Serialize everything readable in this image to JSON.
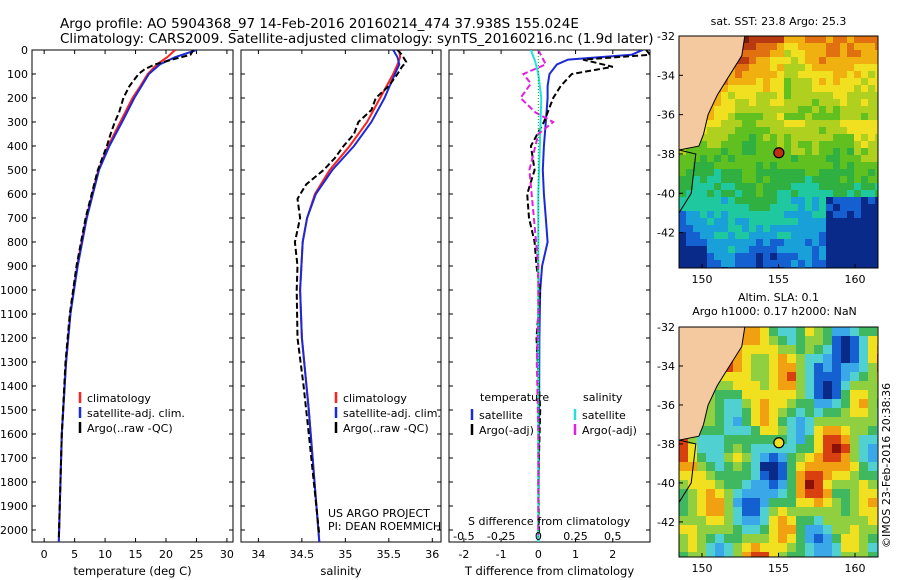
{
  "header": {
    "line1": "Argo profile: AO 5904368_97 14-Feb-2016 20160214_474 37.938S 155.024E",
    "line2": "Climatology: CARS2009. Satellite-adjusted climatology: synTS_20160216.nc (1.9d later)"
  },
  "colors": {
    "climatology": "#ff2020",
    "satellite": "#1a2bd6",
    "argo": "#000000",
    "salinity_sat": "#22e0e0",
    "salinity_argo": "#e020e0"
  },
  "chart_data": [
    {
      "type": "line",
      "id": "temperature",
      "xlabel": "temperature (deg C)",
      "ylabel": "",
      "xlim": [
        -2,
        31
      ],
      "ylim": [
        2050,
        0
      ],
      "xticks": [
        0,
        5,
        10,
        15,
        20,
        25,
        30
      ],
      "yticks": [
        0,
        100,
        200,
        300,
        400,
        500,
        600,
        700,
        800,
        900,
        1000,
        1100,
        1200,
        1300,
        1400,
        1500,
        1600,
        1700,
        1800,
        1900,
        2000
      ],
      "legend": [
        "climatology",
        "satellite-adj. clim.",
        "Argo(..raw -QC)"
      ],
      "series": [
        {
          "name": "climatology",
          "depth": [
            0,
            30,
            60,
            100,
            150,
            200,
            300,
            400,
            500,
            700,
            900,
            1100,
            1300,
            1600,
            2050
          ],
          "values": [
            21.5,
            20.2,
            18.5,
            17,
            15.8,
            14.5,
            12.5,
            10.5,
            8.9,
            6.9,
            5.4,
            4.3,
            3.6,
            2.9,
            2.4
          ]
        },
        {
          "name": "satellite-adj. clim.",
          "depth": [
            0,
            30,
            60,
            100,
            150,
            200,
            300,
            400,
            500,
            700,
            900,
            1100,
            1300,
            1600,
            2050
          ],
          "values": [
            25,
            21.5,
            19,
            17.2,
            16,
            14.8,
            12.8,
            10.7,
            9,
            7,
            5.5,
            4.3,
            3.6,
            2.9,
            2.4
          ]
        },
        {
          "name": "Argo(..raw -QC)",
          "depth": [
            0,
            20,
            40,
            60,
            80,
            100,
            150,
            200,
            260,
            300,
            350,
            400,
            500,
            700,
            900,
            1100,
            1300,
            1600,
            2030
          ],
          "values": [
            24.5,
            24,
            21,
            18.2,
            16.5,
            15.5,
            14,
            13,
            12.3,
            11.6,
            10.9,
            10.3,
            8.8,
            6.8,
            5.3,
            4.2,
            3.5,
            2.9,
            2.4
          ]
        }
      ]
    },
    {
      "type": "line",
      "id": "salinity",
      "xlabel": "salinity",
      "ylabel": "",
      "xlim": [
        33.8,
        36.1
      ],
      "ylim": [
        2050,
        0
      ],
      "xticks": [
        34,
        34.5,
        35,
        35.5,
        36
      ],
      "legend": [
        "climatology",
        "satellite-adj. clim.",
        "Argo(..raw -QC)"
      ],
      "annotation": [
        "US ARGO PROJECT",
        "PI: DEAN ROEMMICH"
      ],
      "series": [
        {
          "name": "climatology",
          "depth": [
            0,
            30,
            60,
            100,
            200,
            300,
            400,
            500,
            600,
            700,
            800,
            1000,
            1200,
            1500,
            2050
          ],
          "values": [
            35.62,
            35.63,
            35.6,
            35.55,
            35.4,
            35.25,
            35.05,
            34.82,
            34.65,
            34.56,
            34.51,
            34.48,
            34.5,
            34.58,
            34.7
          ]
        },
        {
          "name": "satellite-adj. clim.",
          "depth": [
            0,
            30,
            60,
            100,
            200,
            300,
            400,
            500,
            600,
            700,
            800,
            1000,
            1200,
            1500,
            2050
          ],
          "values": [
            35.55,
            35.6,
            35.62,
            35.57,
            35.45,
            35.3,
            35.1,
            34.85,
            34.66,
            34.56,
            34.51,
            34.48,
            34.5,
            34.58,
            34.7
          ]
        },
        {
          "name": "Argo(..raw -QC)",
          "depth": [
            0,
            20,
            50,
            70,
            100,
            150,
            200,
            250,
            300,
            350,
            400,
            450,
            500,
            560,
            620,
            700,
            800,
            900,
            1000,
            1200,
            1400,
            1600,
            2020
          ],
          "values": [
            35.6,
            35.65,
            35.7,
            35.65,
            35.6,
            35.5,
            35.35,
            35.3,
            35.15,
            35.1,
            34.98,
            34.88,
            34.75,
            34.55,
            34.45,
            34.48,
            34.42,
            34.45,
            34.44,
            34.45,
            34.52,
            34.58,
            34.7
          ]
        }
      ]
    },
    {
      "type": "line",
      "id": "difference",
      "xlabel": "T difference from climatology",
      "xlabel_top": "S difference from climatology",
      "ylabel": "",
      "xlim": [
        -2.4,
        3.0
      ],
      "ylim": [
        2050,
        0
      ],
      "xticks": [
        -2,
        -1,
        0,
        1,
        2
      ],
      "s_ticks": [
        "-0.5",
        "-0.25",
        "0",
        "0.25",
        "0.5"
      ],
      "legend_titles": [
        "temperature",
        "salinity"
      ],
      "legend": [
        "satellite",
        "Argo(-adj)",
        "satellite",
        "Argo(-adj)"
      ],
      "series": [
        {
          "name": "T satellite",
          "depth": [
            0,
            20,
            40,
            60,
            100,
            150,
            200,
            300,
            400,
            500,
            600,
            700,
            800,
            900,
            1000,
            1200,
            1500,
            2050
          ],
          "values": [
            2.8,
            2.5,
            0.8,
            0.5,
            0.3,
            0.25,
            0.25,
            0.2,
            0.15,
            0.12,
            0.15,
            0.2,
            0.25,
            0.1,
            0.05,
            0.03,
            0.02,
            0.0
          ]
        },
        {
          "name": "T Argo(-adj)",
          "depth": [
            0,
            20,
            40,
            70,
            100,
            150,
            200,
            300,
            400,
            500,
            600,
            700,
            800,
            900,
            1000,
            1200,
            1500,
            1800,
            2020
          ],
          "values": [
            2.9,
            3.0,
            1.2,
            2.0,
            0.9,
            0.6,
            0.4,
            0.15,
            -0.2,
            -0.1,
            -0.3,
            -0.25,
            -0.1,
            -0.05,
            0.05,
            -0.05,
            0.05,
            0.0,
            0.02
          ]
        },
        {
          "name": "S satellite",
          "depth": [
            0,
            50,
            100,
            200,
            400,
            600,
            800,
            1000,
            1500,
            2050
          ],
          "values": [
            -0.05,
            -0.02,
            0.0,
            0.02,
            0.01,
            0.0,
            0.0,
            0.0,
            0.0,
            0.0
          ]
        },
        {
          "name": "S Argo(-adj)",
          "depth": [
            0,
            60,
            100,
            140,
            200,
            260,
            300,
            350,
            400,
            500,
            700,
            900,
            1100,
            1300,
            1600,
            2020
          ],
          "values": [
            0.0,
            0.05,
            -0.1,
            -0.05,
            -0.12,
            -0.02,
            0.1,
            0.0,
            -0.02,
            -0.06,
            -0.03,
            0.0,
            0.0,
            -0.01,
            0.0,
            0.0
          ]
        }
      ]
    }
  ],
  "maps": [
    {
      "id": "sst-map",
      "title": "sat. SST: 23.8 Argo: 25.3",
      "xticks": [
        "150",
        "155",
        "160"
      ],
      "yticks": [
        "-32",
        "-34",
        "-36",
        "-38",
        "-40",
        "-42"
      ],
      "marker": [
        155.024,
        -37.938
      ]
    },
    {
      "id": "sla-map",
      "title": "Altim. SLA: 0.1",
      "title2": "Argo h1000: 0.17 h2000: NaN",
      "xticks": [
        "150",
        "155",
        "160"
      ],
      "yticks": [
        "-32",
        "-34",
        "-36",
        "-38",
        "-40",
        "-42"
      ],
      "marker": [
        155.024,
        -37.938
      ]
    }
  ],
  "credit": "©IMOS 23-Feb-2016 20:38:36"
}
